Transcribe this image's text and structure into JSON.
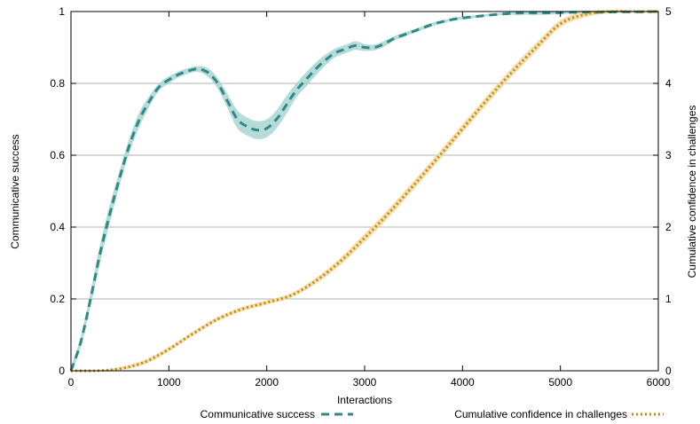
{
  "chart_data": {
    "type": "line",
    "xlabel": "Interactions",
    "ylabel": "Communicative success",
    "y2label": "Cumulative confidence in challenges",
    "xlim": [
      0,
      6000
    ],
    "ylim": [
      0,
      1
    ],
    "y2lim": [
      0,
      5
    ],
    "x_ticks": [
      "0",
      "1000",
      "2000",
      "3000",
      "4000",
      "5000",
      "6000"
    ],
    "y_ticks": [
      "0",
      "0.2",
      "0.4",
      "0.6",
      "0.8",
      "1"
    ],
    "y2_ticks": [
      "0",
      "1",
      "2",
      "3",
      "4",
      "5"
    ],
    "grid": true,
    "legend_position": "bottom",
    "series": [
      {
        "name": "Communicative success",
        "axis": "left",
        "color": "#2f8a86",
        "band_color": "#a9d6d4",
        "style": "dashed",
        "x": [
          0,
          100,
          200,
          300,
          400,
          500,
          600,
          700,
          800,
          900,
          1000,
          1100,
          1200,
          1300,
          1400,
          1500,
          1600,
          1700,
          1800,
          1900,
          2000,
          2100,
          2200,
          2300,
          2400,
          2500,
          2600,
          2700,
          2800,
          2900,
          3000,
          3100,
          3200,
          3300,
          3400,
          3500,
          3600,
          3700,
          3800,
          3900,
          4000,
          4200,
          4400,
          4600,
          4800,
          5000,
          5200,
          5400,
          5600,
          5800,
          6000
        ],
        "y": [
          0.0,
          0.08,
          0.2,
          0.33,
          0.44,
          0.54,
          0.63,
          0.7,
          0.75,
          0.79,
          0.81,
          0.825,
          0.835,
          0.84,
          0.83,
          0.8,
          0.75,
          0.7,
          0.68,
          0.67,
          0.675,
          0.7,
          0.74,
          0.78,
          0.81,
          0.84,
          0.865,
          0.885,
          0.895,
          0.905,
          0.9,
          0.9,
          0.91,
          0.925,
          0.935,
          0.945,
          0.955,
          0.965,
          0.972,
          0.978,
          0.982,
          0.988,
          0.993,
          0.996,
          0.996,
          0.997,
          0.998,
          0.998,
          0.999,
          0.999,
          1.0
        ],
        "band": [
          0.01,
          0.015,
          0.02,
          0.025,
          0.025,
          0.02,
          0.02,
          0.02,
          0.015,
          0.01,
          0.01,
          0.008,
          0.008,
          0.008,
          0.012,
          0.015,
          0.02,
          0.025,
          0.025,
          0.025,
          0.025,
          0.025,
          0.025,
          0.02,
          0.02,
          0.018,
          0.015,
          0.012,
          0.012,
          0.012,
          0.01,
          0.008,
          0.008,
          0.006,
          0.006,
          0.005,
          0.005,
          0.005,
          0.004,
          0.004,
          0.004,
          0.003,
          0.003,
          0.005,
          0.005,
          0.004,
          0.003,
          0.002,
          0.002,
          0.001,
          0.001
        ]
      },
      {
        "name": "Cumulative confidence in challenges",
        "axis": "right",
        "color": "#c38a0e",
        "band_color": "#f2d9a3",
        "style": "dotted",
        "x": [
          0,
          250,
          500,
          750,
          1000,
          1250,
          1500,
          1750,
          2000,
          2250,
          2500,
          2750,
          3000,
          3250,
          3500,
          3750,
          4000,
          4250,
          4500,
          4750,
          5000,
          5250,
          5500,
          5750,
          6000
        ],
        "y": [
          0.0,
          0.0,
          0.03,
          0.12,
          0.3,
          0.52,
          0.72,
          0.86,
          0.95,
          1.05,
          1.25,
          1.52,
          1.85,
          2.2,
          2.58,
          2.97,
          3.37,
          3.77,
          4.15,
          4.5,
          4.83,
          4.96,
          5.0,
          5.0,
          5.0
        ],
        "band": [
          0.0,
          0.0,
          0.02,
          0.03,
          0.03,
          0.03,
          0.03,
          0.03,
          0.03,
          0.03,
          0.04,
          0.05,
          0.06,
          0.06,
          0.06,
          0.06,
          0.06,
          0.06,
          0.06,
          0.06,
          0.05,
          0.04,
          0.02,
          0.01,
          0.0
        ]
      }
    ]
  }
}
